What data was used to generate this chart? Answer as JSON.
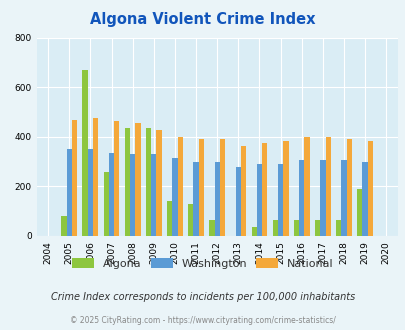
{
  "title": "Algona Violent Crime Index",
  "years": [
    2004,
    2005,
    2006,
    2007,
    2008,
    2009,
    2010,
    2011,
    2012,
    2013,
    2014,
    2015,
    2016,
    2017,
    2018,
    2019,
    2020
  ],
  "algona": [
    0,
    80,
    670,
    260,
    435,
    435,
    140,
    130,
    65,
    0,
    35,
    65,
    65,
    65,
    65,
    190,
    0
  ],
  "washington": [
    0,
    350,
    350,
    335,
    330,
    330,
    315,
    300,
    300,
    280,
    290,
    290,
    308,
    308,
    308,
    300,
    0
  ],
  "national": [
    0,
    470,
    475,
    465,
    455,
    430,
    400,
    390,
    390,
    365,
    375,
    385,
    400,
    400,
    390,
    385,
    0
  ],
  "algona_color": "#8dc63f",
  "washington_color": "#5b9bd5",
  "national_color": "#f4a83a",
  "bg_color": "#eaf4f8",
  "plot_bg": "#daedf5",
  "ylim": [
    0,
    800
  ],
  "yticks": [
    0,
    200,
    400,
    600,
    800
  ],
  "subtitle": "Crime Index corresponds to incidents per 100,000 inhabitants",
  "footer": "© 2025 CityRating.com - https://www.cityrating.com/crime-statistics/",
  "legend_labels": [
    "Algona",
    "Washington",
    "National"
  ],
  "title_color": "#1155bb",
  "subtitle_color": "#333333",
  "footer_color": "#888888"
}
